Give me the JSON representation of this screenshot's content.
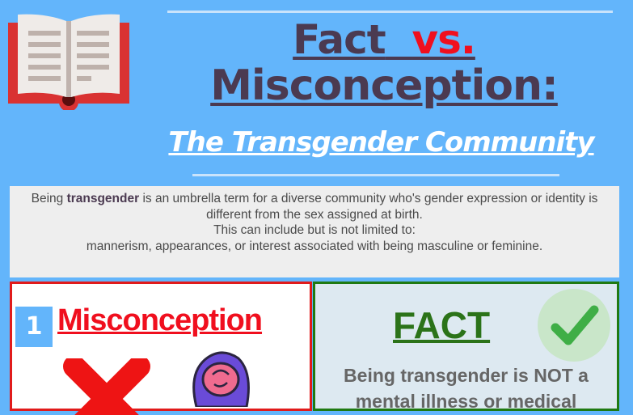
{
  "header": {
    "title_fact": "Fact",
    "title_vs": "vs.",
    "title_line2": "Misconception:",
    "subtitle": "The Transgender Community",
    "icon": "open-book-icon"
  },
  "intro": {
    "pre": "Being ",
    "bold": "transgender",
    "post": " is an umbrella term for a diverse community who's gender expression or identity is different from the sex assigned at birth.",
    "line3": "This can include but is not limited to:",
    "line4": "mannerism, appearances,  or interest associated with being masculine or feminine."
  },
  "misconception": {
    "number": "1",
    "label": "Misconception",
    "icons": [
      "x-mark-icon",
      "brain-head-icon"
    ]
  },
  "fact": {
    "label": "FACT",
    "text": "Being transgender is NOT a mental illness or medical",
    "icon": "checkmark-icon"
  },
  "colors": {
    "background": "#63b5fb",
    "title": "#4b3a51",
    "red": "#f00f1e",
    "green": "#2b7319"
  }
}
